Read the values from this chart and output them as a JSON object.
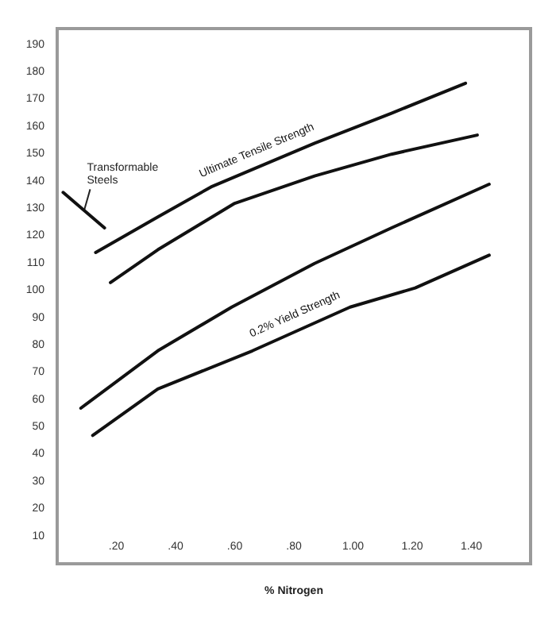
{
  "chart_data": {
    "type": "line",
    "xlabel": "% Nitrogen",
    "xlim": [
      0,
      1.6
    ],
    "ylim": [
      0,
      196
    ],
    "xticks": [
      {
        "value": 0.2,
        "label": ".20"
      },
      {
        "value": 0.4,
        "label": ".40"
      },
      {
        "value": 0.6,
        "label": ".60"
      },
      {
        "value": 0.8,
        "label": ".80"
      },
      {
        "value": 1.0,
        "label": "1.00"
      },
      {
        "value": 1.2,
        "label": "1.20"
      },
      {
        "value": 1.4,
        "label": "1.40"
      }
    ],
    "yticks": [
      10,
      20,
      30,
      40,
      50,
      60,
      70,
      80,
      90,
      100,
      110,
      120,
      130,
      140,
      150,
      160,
      170,
      180,
      190
    ],
    "grid": false,
    "legend": false,
    "marker": "none",
    "line_style": "solid",
    "series": [
      {
        "name": "Ultimate Tensile Strength",
        "color": "#111111",
        "x": [
          0.13,
          0.34,
          0.52,
          0.87,
          1.13,
          1.38
        ],
        "values": [
          114,
          127,
          138,
          154,
          165,
          176
        ]
      },
      {
        "color": "#111111",
        "x": [
          0.18,
          0.34,
          0.6,
          0.87,
          1.13,
          1.42
        ],
        "values": [
          103,
          115,
          132,
          142,
          150,
          157
        ]
      },
      {
        "color": "#111111",
        "x": [
          0.08,
          0.34,
          0.59,
          0.87,
          1.13,
          1.46
        ],
        "values": [
          57,
          78,
          94,
          110,
          123,
          139
        ]
      },
      {
        "name": "0.2% Yield Strength",
        "color": "#111111",
        "x": [
          0.12,
          0.34,
          0.66,
          0.99,
          1.21,
          1.46
        ],
        "values": [
          47,
          64,
          78,
          94,
          101,
          113
        ]
      },
      {
        "color": "#111111",
        "x": [
          0.02,
          0.16
        ],
        "values": [
          136,
          123
        ]
      }
    ],
    "annotations": [
      {
        "text": "Transformable\nSteels",
        "x": 0.09,
        "y": 129
      }
    ]
  }
}
